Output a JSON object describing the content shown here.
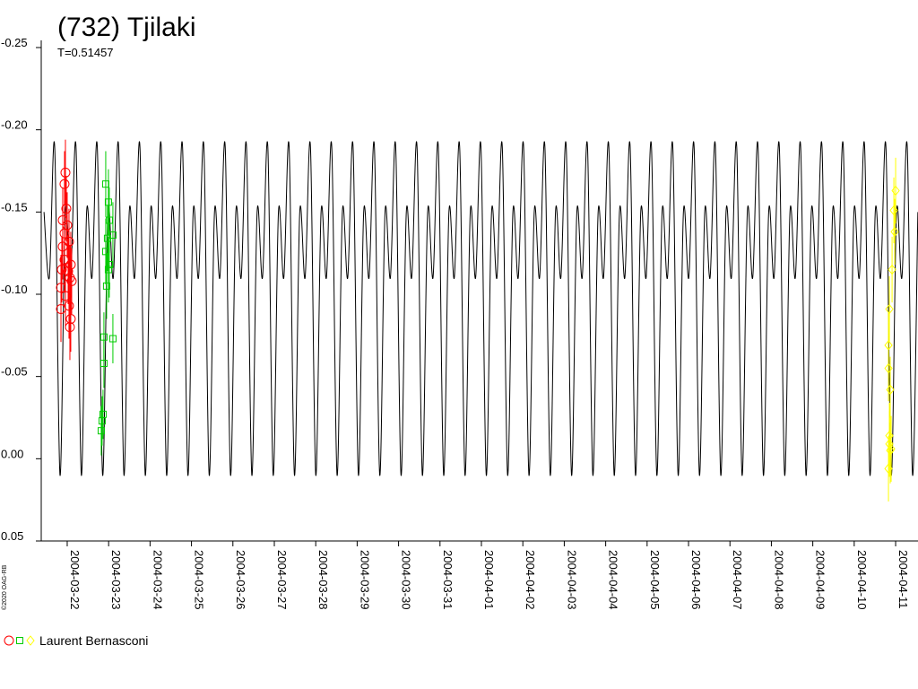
{
  "chart_data": {
    "type": "scatter",
    "title": "(732) Tjilaki",
    "subtitle": "T=0.51457",
    "credit": "©2020 OAG-RB",
    "legend": "Laurent Bernasconi",
    "y_inverted": true,
    "ylim": [
      -0.25,
      0.05
    ],
    "yticks": [
      -0.25,
      {
        "value": -0.2,
        "label": "-0.20"
      },
      -0.15,
      {
        "value": -0.1,
        "label": "-0.10"
      },
      -0.05,
      {
        "value": 0,
        "label": "0.00"
      },
      0.05
    ],
    "xlim": [
      2453085.873,
      2453107.04
    ],
    "xticks": [
      {
        "value": 2453086.5,
        "label": "2004-03-22"
      },
      {
        "value": 2453087.5,
        "label": "2004-03-23"
      },
      {
        "value": 2453088.5,
        "label": "2004-03-24"
      },
      {
        "value": 2453089.5,
        "label": "2004-03-25"
      },
      {
        "value": 2453090.5,
        "label": "2004-03-26"
      },
      {
        "value": 2453091.5,
        "label": "2004-03-27"
      },
      {
        "value": 2453092.5,
        "label": "2004-03-28"
      },
      {
        "value": 2453093.5,
        "label": "2004-03-29"
      },
      {
        "value": 2453094.5,
        "label": "2004-03-30"
      },
      {
        "value": 2453095.5,
        "label": "2004-03-31"
      },
      {
        "value": 2453096.5,
        "label": "2004-04-01"
      },
      {
        "value": 2453097.5,
        "label": "2004-04-02"
      },
      {
        "value": 2453098.5,
        "label": "2004-04-03"
      },
      {
        "value": 2453099.5,
        "label": "2004-04-04"
      },
      {
        "value": 2453100.5,
        "label": "2004-04-05"
      },
      {
        "value": 2453101.5,
        "label": "2004-04-06"
      },
      {
        "value": 2453102.5,
        "label": "2004-04-07"
      },
      {
        "value": 2453103.5,
        "label": "2004-04-08"
      },
      {
        "value": 2453104.5,
        "label": "2004-04-09"
      },
      {
        "value": 2453105.5,
        "label": "2004-04-10"
      },
      {
        "value": 2453106.5,
        "label": "2004-04-11"
      }
    ],
    "series": [
      {
        "style": "line",
        "color": "#000000",
        "x": [
          2453085.94,
          2453086.068,
          2453086.197,
          2453086.326,
          2453086.454,
          2453086.583,
          2453086.712,
          2453086.841,
          2453086.969,
          2453087.098,
          2453087.226,
          2453087.355,
          2453087.483,
          2453087.612,
          2453087.741,
          2453087.87,
          2453087.998,
          2453088.127,
          2453088.255,
          2453088.384,
          2453088.512,
          2453088.641,
          2453088.77,
          2453088.899,
          2453089.027,
          2453089.156,
          2453089.284,
          2453089.413,
          2453089.541,
          2453089.67,
          2453089.799,
          2453089.928,
          2453090.056,
          2453090.185,
          2453090.314,
          2453090.443,
          2453090.571,
          2453090.7,
          2453090.828,
          2453090.957,
          2453091.085,
          2453091.214,
          2453091.343,
          2453091.472,
          2453091.6,
          2453091.729,
          2453091.857,
          2453091.986,
          2453092.114,
          2453092.243,
          2453092.372,
          2453092.501,
          2453092.629,
          2453092.758,
          2453092.886,
          2453093.015,
          2453093.143,
          2453093.272,
          2453093.401,
          2453093.53,
          2453093.658,
          2453093.787,
          2453093.916,
          2453094.045,
          2453094.173,
          2453094.302,
          2453094.43,
          2453094.559,
          2453094.687,
          2453094.816,
          2453094.945,
          2453095.074,
          2453095.202,
          2453095.331,
          2453095.459,
          2453095.588,
          2453095.716,
          2453095.845,
          2453095.974,
          2453096.103,
          2453096.231,
          2453096.36,
          2453096.488,
          2453096.617,
          2453096.745,
          2453096.874,
          2453097.003,
          2453097.132,
          2453097.26,
          2453097.389,
          2453097.518,
          2453097.647,
          2453097.775,
          2453097.904,
          2453098.032,
          2453098.161,
          2453098.289,
          2453098.418,
          2453098.547,
          2453098.676,
          2453098.804,
          2453098.933,
          2453099.061,
          2453099.19,
          2453099.318,
          2453099.447,
          2453099.576,
          2453099.705,
          2453099.833,
          2453099.962,
          2453100.09,
          2453100.219,
          2453100.347,
          2453100.476,
          2453100.605,
          2453100.734,
          2453100.862,
          2453100.991,
          2453101.12,
          2453101.249,
          2453101.377,
          2453101.506,
          2453101.634,
          2453101.763,
          2453101.891,
          2453102.02,
          2453102.149,
          2453102.278,
          2453102.406,
          2453102.535,
          2453102.663,
          2453102.792,
          2453102.92,
          2453103.049,
          2453103.178,
          2453103.307,
          2453103.435,
          2453103.564,
          2453103.692,
          2453103.821,
          2453103.949,
          2453104.078,
          2453104.207,
          2453104.336,
          2453104.464,
          2453104.593,
          2453104.722,
          2453104.851,
          2453104.979,
          2453105.108,
          2453105.236,
          2453105.365,
          2453105.493,
          2453105.622,
          2453105.751,
          2453105.88,
          2453106.008,
          2453106.137,
          2453106.265,
          2453106.394,
          2453106.522,
          2453106.651,
          2453106.78,
          2453106.909,
          2453107.037
        ],
        "values": [
          -0.15,
          -0.11,
          -0.19,
          0.01,
          -0.15,
          -0.11,
          -0.19,
          0.01,
          -0.15,
          -0.11,
          -0.19,
          0.01,
          -0.15,
          -0.11,
          -0.19,
          0.01,
          -0.15,
          -0.11,
          -0.19,
          0.01,
          -0.15,
          -0.11,
          -0.19,
          0.01,
          -0.15,
          -0.11,
          -0.19,
          0.01,
          -0.15,
          -0.11,
          -0.19,
          0.01,
          -0.15,
          -0.11,
          -0.19,
          0.01,
          -0.15,
          -0.11,
          -0.19,
          0.01,
          -0.15,
          -0.11,
          -0.19,
          0.01,
          -0.15,
          -0.11,
          -0.19,
          0.01,
          -0.15,
          -0.11,
          -0.19,
          0.01,
          -0.15,
          -0.11,
          -0.19,
          0.01,
          -0.15,
          -0.11,
          -0.19,
          0.01,
          -0.15,
          -0.11,
          -0.19,
          0.01,
          -0.15,
          -0.11,
          -0.19,
          0.01,
          -0.15,
          -0.11,
          -0.19,
          0.01,
          -0.15,
          -0.11,
          -0.19,
          0.01,
          -0.15,
          -0.11,
          -0.19,
          0.01,
          -0.15,
          -0.11,
          -0.19,
          0.01,
          -0.15,
          -0.11,
          -0.19,
          0.01,
          -0.15,
          -0.11,
          -0.19,
          0.01,
          -0.15,
          -0.11,
          -0.19,
          0.01,
          -0.15,
          -0.11,
          -0.19,
          0.01,
          -0.15,
          -0.11,
          -0.19,
          0.01,
          -0.15,
          -0.11,
          -0.19,
          0.01,
          -0.15,
          -0.11,
          -0.19,
          0.01,
          -0.15,
          -0.11,
          -0.19,
          0.01,
          -0.15,
          -0.11,
          -0.19,
          0.01,
          -0.15,
          -0.11,
          -0.19,
          0.01,
          -0.15,
          -0.11,
          -0.19,
          0.01,
          -0.15,
          -0.11,
          -0.19,
          0.01,
          -0.15,
          -0.11,
          -0.19,
          0.01,
          -0.15,
          -0.11,
          -0.19,
          0.01,
          -0.15,
          -0.11,
          -0.19,
          0.01,
          -0.15,
          -0.11,
          -0.19,
          0.01,
          -0.15,
          -0.11,
          -0.19,
          0.01,
          -0.15,
          -0.11,
          -0.19,
          0.01,
          -0.15,
          -0.11,
          -0.19,
          0.01,
          -0.15,
          -0.11,
          -0.19,
          0.01,
          -0.15
        ]
      },
      {
        "style": "points",
        "marker": "circle",
        "color": "#ff0000",
        "x": [
          2453086.457,
          2453086.435,
          2453086.478,
          2453086.392,
          2453086.435,
          2453086.392,
          2453086.435,
          2453086.37,
          2453086.522,
          2453086.565,
          2453086.608,
          2453086.349,
          2453086.457,
          2453086.543,
          2453086.349,
          2453086.586,
          2453086.565,
          2453086.5,
          2453086.543,
          2453086.586
        ],
        "values": [
          -0.174,
          -0.167,
          -0.152,
          -0.145,
          -0.137,
          -0.129,
          -0.121,
          -0.115,
          -0.114,
          -0.11,
          -0.108,
          -0.104,
          -0.099,
          -0.093,
          -0.091,
          -0.085,
          -0.08,
          -0.142,
          -0.132,
          -0.118
        ],
        "errors": [
          0.02,
          0.02,
          0.02,
          0.02,
          0.02,
          0.02,
          0.02,
          0.02,
          0.02,
          0.02,
          0.02,
          0.02,
          0.02,
          0.02,
          0.02,
          0.02,
          0.02,
          0.02,
          0.02,
          0.02
        ]
      },
      {
        "style": "points",
        "marker": "square",
        "color": "#00cc00",
        "x": [
          2453087.43,
          2453087.495,
          2453087.516,
          2453087.473,
          2453087.603,
          2453087.43,
          2453087.495,
          2453087.451,
          2453087.386,
          2453087.603,
          2453087.386,
          2453087.365,
          2453087.343,
          2453087.322,
          2453087.516
        ],
        "values": [
          -0.167,
          -0.156,
          -0.145,
          -0.134,
          -0.136,
          -0.126,
          -0.115,
          -0.105,
          -0.074,
          -0.073,
          -0.058,
          -0.027,
          -0.023,
          -0.017,
          -0.118
        ],
        "errors": [
          0.02,
          0.02,
          0.02,
          0.02,
          0.02,
          0.02,
          0.02,
          0.02,
          0.015,
          0.015,
          0.015,
          0.015,
          0.015,
          0.015,
          0.02
        ]
      },
      {
        "style": "points",
        "marker": "diamond",
        "color": "#ffff00",
        "x": [
          2453106.5,
          2453106.457,
          2453106.478,
          2453106.414,
          2453106.349,
          2453106.327,
          2453106.327,
          2453106.37,
          2453106.349,
          2453106.392,
          2453106.37,
          2453106.327,
          2453106.349
        ],
        "values": [
          -0.163,
          -0.151,
          -0.138,
          -0.115,
          -0.091,
          -0.069,
          -0.055,
          -0.042,
          -0.014,
          -0.006,
          -0.005,
          0.006,
          -0.009
        ],
        "errors": [
          0.02,
          0.02,
          0.02,
          0.02,
          0.02,
          0.02,
          0.02,
          0.02,
          0.02,
          0.02,
          0.02,
          0.02,
          0.02
        ]
      }
    ]
  }
}
